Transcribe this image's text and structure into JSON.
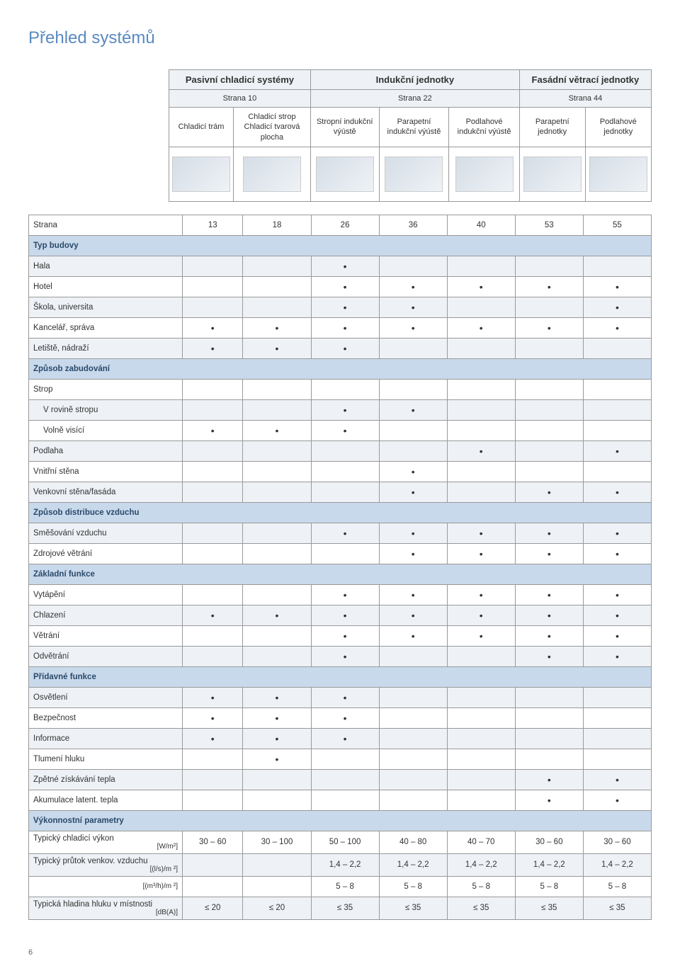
{
  "title": "Přehled systémů",
  "page_number": "6",
  "groups": [
    {
      "title": "Pasivní chladicí systémy",
      "sub": "Strana 10",
      "span": 2
    },
    {
      "title": "Indukční jednotky",
      "sub": "Strana 22",
      "span": 3
    },
    {
      "title": "Fasádní větrací jednotky",
      "sub": "Strana 44",
      "span": 2
    }
  ],
  "columns": [
    "Chladicí trám",
    "Chladicí strop Chladicí tvarová plocha",
    "Stropní indukční výústě",
    "Parapetní indukční výústě",
    "Podlahové indukční výústě",
    "Parapetní jednotky",
    "Podlahové jednotky"
  ],
  "strana_row": {
    "label": "Strana",
    "values": [
      "13",
      "18",
      "26",
      "36",
      "40",
      "53",
      "55"
    ]
  },
  "sections": [
    {
      "header": "Typ budovy",
      "rows": [
        {
          "label": "Hala",
          "dots": [
            0,
            0,
            1,
            0,
            0,
            0,
            0
          ],
          "alt": true
        },
        {
          "label": "Hotel",
          "dots": [
            0,
            0,
            1,
            1,
            1,
            1,
            1
          ],
          "alt": false
        },
        {
          "label": "Škola, universita",
          "dots": [
            0,
            0,
            1,
            1,
            0,
            0,
            1
          ],
          "alt": true
        },
        {
          "label": "Kancelář, správa",
          "dots": [
            1,
            1,
            1,
            1,
            1,
            1,
            1
          ],
          "alt": false
        },
        {
          "label": "Letiště, nádraží",
          "dots": [
            1,
            1,
            1,
            0,
            0,
            0,
            0
          ],
          "alt": true
        }
      ]
    },
    {
      "header": "Způsob zabudování",
      "fullheader": true,
      "rows": [
        {
          "label": "Strop",
          "dots": [
            0,
            0,
            0,
            0,
            0,
            0,
            0
          ],
          "alt": false,
          "subheader": true
        },
        {
          "label": "V rovině stropu",
          "dots": [
            0,
            0,
            1,
            1,
            0,
            0,
            0
          ],
          "alt": true,
          "indent": true
        },
        {
          "label": "Volně visící",
          "dots": [
            1,
            1,
            1,
            0,
            0,
            0,
            0
          ],
          "alt": false,
          "indent": true
        },
        {
          "label": "Podlaha",
          "dots": [
            0,
            0,
            0,
            0,
            1,
            0,
            1
          ],
          "alt": true
        },
        {
          "label": "Vnitřní stěna",
          "dots": [
            0,
            0,
            0,
            1,
            0,
            0,
            0
          ],
          "alt": false
        },
        {
          "label": "Venkovní stěna/fasáda",
          "dots": [
            0,
            0,
            0,
            1,
            0,
            1,
            1
          ],
          "alt": true
        }
      ]
    },
    {
      "header": "Způsob distribuce vzduchu",
      "rows": [
        {
          "label": "Směšování vzduchu",
          "dots": [
            0,
            0,
            1,
            1,
            1,
            1,
            1
          ],
          "alt": true
        },
        {
          "label": "Zdrojové větrání",
          "dots": [
            0,
            0,
            0,
            1,
            1,
            1,
            1
          ],
          "alt": false
        }
      ]
    },
    {
      "header": "Základní funkce",
      "rows": [
        {
          "label": "Vytápění",
          "dots": [
            0,
            0,
            1,
            1,
            1,
            1,
            1
          ],
          "alt": false
        },
        {
          "label": "Chlazení",
          "dots": [
            1,
            1,
            1,
            1,
            1,
            1,
            1
          ],
          "alt": true
        },
        {
          "label": "Větrání",
          "dots": [
            0,
            0,
            1,
            1,
            1,
            1,
            1
          ],
          "alt": false
        },
        {
          "label": "Odvětrání",
          "dots": [
            0,
            0,
            1,
            0,
            0,
            1,
            1
          ],
          "alt": true
        }
      ]
    },
    {
      "header": "Přídavné funkce",
      "rows": [
        {
          "label": "Osvětlení",
          "dots": [
            1,
            1,
            1,
            0,
            0,
            0,
            0
          ],
          "alt": true
        },
        {
          "label": "Bezpečnost",
          "dots": [
            1,
            1,
            1,
            0,
            0,
            0,
            0
          ],
          "alt": false
        },
        {
          "label": "Informace",
          "dots": [
            1,
            1,
            1,
            0,
            0,
            0,
            0
          ],
          "alt": true
        },
        {
          "label": "Tlumení hluku",
          "dots": [
            0,
            1,
            0,
            0,
            0,
            0,
            0
          ],
          "alt": false
        },
        {
          "label": "Zpětné získávání tepla",
          "dots": [
            0,
            0,
            0,
            0,
            0,
            1,
            1
          ],
          "alt": true
        },
        {
          "label": "Akumulace latent. tepla",
          "dots": [
            0,
            0,
            0,
            0,
            0,
            1,
            1
          ],
          "alt": false
        }
      ]
    },
    {
      "header": "Výkonnostní parametry",
      "perf": true,
      "rows": [
        {
          "label": "Typický chladicí výkon",
          "unit": "[W/m²]",
          "values": [
            "30 – 60",
            "30 – 100",
            "50 – 100",
            "40 – 80",
            "40 – 70",
            "30 – 60",
            "30 – 60"
          ],
          "alt": false
        },
        {
          "label": "Typický průtok venkov. vzduchu",
          "unit": "[(l/s)/m ²]",
          "values": [
            "",
            "",
            "1,4 – 2,2",
            "1,4 – 2,2",
            "1,4 – 2,2",
            "1,4 – 2,2",
            "1,4 – 2,2"
          ],
          "alt": true
        },
        {
          "label": "",
          "unit": "[(m³/h)/m ²]",
          "values": [
            "",
            "",
            "5 – 8",
            "5 – 8",
            "5 – 8",
            "5 – 8",
            "5 – 8"
          ],
          "alt": false
        },
        {
          "label": "Typická hladina hluku v místnosti",
          "unit": "[dB(A)]",
          "values": [
            "≤ 20",
            "≤ 20",
            "≤ 35",
            "≤ 35",
            "≤ 35",
            "≤ 35",
            "≤ 35"
          ],
          "alt": true
        }
      ]
    }
  ]
}
